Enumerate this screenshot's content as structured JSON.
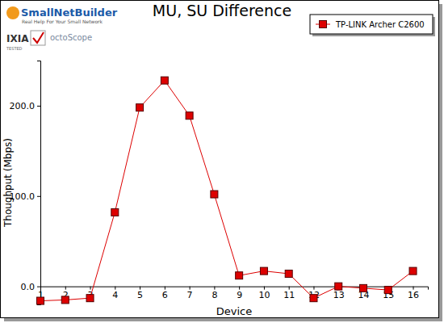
{
  "chart_data": {
    "type": "line",
    "title": "MU, SU Difference",
    "x_label": "Device",
    "y_label": "Thoughput (Mbps)",
    "annotations": [
      "SmallNetBuilder",
      "Real Help For Your Small Network",
      "IXIA",
      "TESTED",
      "octoScope"
    ],
    "x": [
      1,
      2,
      3,
      4,
      5,
      6,
      7,
      8,
      9,
      10,
      11,
      12,
      13,
      14,
      15,
      16
    ],
    "xlim": [
      1,
      16.6
    ],
    "xticks": [
      1,
      2,
      3,
      4,
      5,
      6,
      7,
      8,
      9,
      10,
      11,
      12,
      13,
      14,
      15,
      16
    ],
    "ylim": [
      -20,
      250
    ],
    "yticks": [
      {
        "value": 0,
        "label": "0.0"
      },
      {
        "value": 100,
        "label": "100.0"
      },
      {
        "value": 200,
        "label": "200.0"
      }
    ],
    "grid": false,
    "legend": "top-right",
    "series": [
      {
        "name": "TP-LINK Archer C2600",
        "color": "#dd0000",
        "marker": "square",
        "line_style": "solid",
        "values": [
          -16,
          -15,
          -13,
          82,
          198,
          228,
          189,
          102,
          12,
          17,
          14,
          -13,
          0,
          -2,
          -4,
          17
        ]
      }
    ]
  }
}
